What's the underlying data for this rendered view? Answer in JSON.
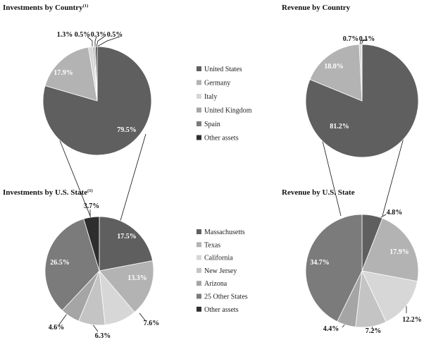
{
  "legend_country": [
    {
      "label": "United States",
      "color": "#5f5f5f"
    },
    {
      "label": "Germany",
      "color": "#b3b3b3"
    },
    {
      "label": "Italy",
      "color": "#d7d7d7"
    },
    {
      "label": "United Kingdom",
      "color": "#a5a5a5"
    },
    {
      "label": "Spain",
      "color": "#7b7b7b"
    },
    {
      "label": "Other assets",
      "color": "#2e2e2e"
    }
  ],
  "legend_state": [
    {
      "label": "Massachusetts",
      "color": "#5f5f5f"
    },
    {
      "label": "Texas",
      "color": "#b3b3b3"
    },
    {
      "label": "California",
      "color": "#d7d7d7"
    },
    {
      "label": "New Jersey",
      "color": "#c4c4c4"
    },
    {
      "label": "Arizona",
      "color": "#a5a5a5"
    },
    {
      "label": "25 Other States",
      "color": "#7b7b7b"
    },
    {
      "label": "Other assets",
      "color": "#2e2e2e"
    }
  ],
  "chart_data": [
    {
      "type": "pie",
      "title": "Investments by Country",
      "title_sup": "(1)",
      "categories": [
        "United States",
        "Germany",
        "Italy",
        "United Kingdom",
        "Spain",
        "Other assets"
      ],
      "values": [
        79.5,
        17.9,
        1.3,
        0.5,
        0.3,
        0.5
      ],
      "labels": [
        "79.5%",
        "17.9%",
        "1.3%",
        "0.5%",
        "0.3%",
        "0.5%"
      ],
      "colors": [
        "#5f5f5f",
        "#b3b3b3",
        "#d7d7d7",
        "#a5a5a5",
        "#7b7b7b",
        "#2e2e2e"
      ]
    },
    {
      "type": "pie",
      "title": "Revenue by Country",
      "categories": [
        "United States",
        "Germany",
        "Italy",
        "Spain"
      ],
      "values": [
        81.2,
        18.0,
        0.7,
        0.1
      ],
      "labels": [
        "81.2%",
        "18.0%",
        "0.7%",
        "0.1%"
      ],
      "colors": [
        "#5f5f5f",
        "#b3b3b3",
        "#d7d7d7",
        "#7b7b7b"
      ]
    },
    {
      "type": "pie",
      "title": "Investments by U.S. State",
      "title_sup": "(1)",
      "categories": [
        "Massachusetts",
        "Texas",
        "California",
        "New Jersey",
        "Arizona",
        "25 Other States",
        "Other assets"
      ],
      "values": [
        17.5,
        13.3,
        7.6,
        6.3,
        4.6,
        26.5,
        3.7
      ],
      "labels": [
        "17.5%",
        "13.3%",
        "7.6%",
        "6.3%",
        "4.6%",
        "26.5%",
        "3.7%"
      ],
      "colors": [
        "#5f5f5f",
        "#b3b3b3",
        "#d7d7d7",
        "#c4c4c4",
        "#a5a5a5",
        "#7b7b7b",
        "#2e2e2e"
      ]
    },
    {
      "type": "pie",
      "title": "Revenue by U.S. State",
      "categories": [
        "Massachusetts",
        "Texas",
        "California",
        "New Jersey",
        "Arizona",
        "25 Other States"
      ],
      "values": [
        4.8,
        17.9,
        12.2,
        7.2,
        4.4,
        34.7
      ],
      "labels": [
        "4.8%",
        "17.9%",
        "12.2%",
        "7.2%",
        "4.4%",
        "34.7%"
      ],
      "colors": [
        "#5f5f5f",
        "#b3b3b3",
        "#d7d7d7",
        "#c4c4c4",
        "#a5a5a5",
        "#7b7b7b"
      ]
    }
  ]
}
